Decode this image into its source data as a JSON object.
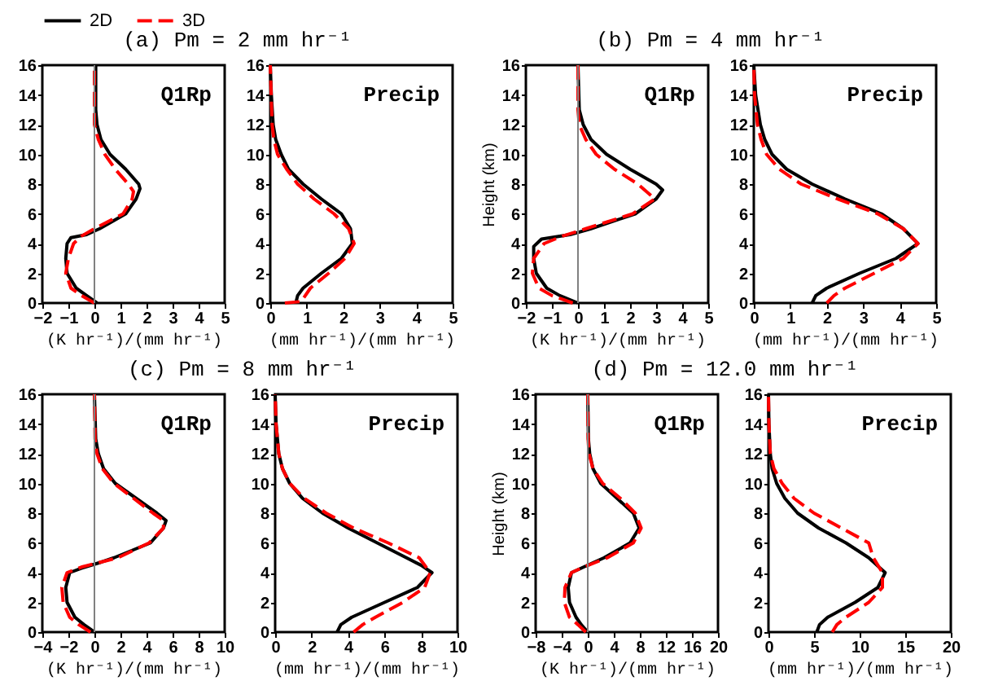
{
  "chart_data": [
    {
      "type": "line",
      "title": "(a) Pm = 2 mm hr⁻¹",
      "xlabel": "(K hr⁻¹)/(mm hr⁻¹)",
      "xlim": [
        -2,
        5
      ],
      "xticks": [
        -2,
        -1,
        0,
        1,
        2,
        3,
        4,
        5
      ],
      "ylim": [
        0,
        16
      ],
      "yticks": [
        0,
        2,
        4,
        6,
        8,
        10,
        12,
        14,
        16
      ],
      "annotations": [
        "Q1Rp"
      ],
      "legend": "top",
      "grid": false,
      "ref_lines": [
        {
          "axis": "x",
          "value": 0,
          "color": "#808080"
        }
      ],
      "series": [
        {
          "name": "2D",
          "color": "#000000",
          "line_style": "solid",
          "x": [
            0.1,
            -0.3,
            -0.7,
            -1.05,
            -1.1,
            -1.05,
            -0.9,
            -0.3,
            0.2,
            1.2,
            1.6,
            1.75,
            1.7,
            1.2,
            0.6,
            0.25,
            0.1,
            0.05,
            0.05
          ],
          "values": [
            0,
            0.5,
            1,
            2,
            3,
            4,
            4.4,
            4.6,
            5,
            6,
            7,
            7.7,
            8,
            9,
            10,
            11,
            12,
            13,
            16
          ]
        },
        {
          "name": "3D",
          "color": "#ff0000",
          "line_style": "dashed",
          "x": [
            0,
            -0.5,
            -0.9,
            -1.1,
            -1,
            -0.8,
            -0.5,
            0,
            1.1,
            1.45,
            1.5,
            1.3,
            0.8,
            0.4,
            0.15,
            0,
            0,
            0
          ],
          "values": [
            0,
            0.5,
            1,
            2,
            3,
            4,
            4.5,
            5,
            6,
            7,
            7.5,
            8,
            9,
            10,
            11,
            12,
            13,
            16
          ]
        }
      ]
    },
    {
      "type": "line",
      "xlabel": "(mm hr⁻¹)/(mm hr⁻¹)",
      "xlim": [
        0,
        5
      ],
      "xticks": [
        0,
        1,
        2,
        3,
        4,
        5
      ],
      "ylim": [
        0,
        16
      ],
      "yticks": [
        0,
        2,
        4,
        6,
        8,
        10,
        12,
        14,
        16
      ],
      "annotations": [
        "Precip"
      ],
      "grid": false,
      "series": [
        {
          "color": "#000000",
          "line_style": "solid",
          "x": [
            0.7,
            0.75,
            0.9,
            1.4,
            1.95,
            2.25,
            2.2,
            1.95,
            1.4,
            0.9,
            0.5,
            0.3,
            0.15,
            0.08,
            0.03,
            0
          ],
          "values": [
            0,
            0.5,
            1,
            2,
            3,
            4,
            5,
            6,
            7,
            8,
            9,
            10,
            11,
            12,
            14,
            16
          ]
        },
        {
          "color": "#ff0000",
          "line_style": "dashed",
          "x": [
            0.4,
            0.85,
            1.1,
            1.6,
            2.05,
            2.3,
            2.15,
            1.75,
            1.2,
            0.75,
            0.45,
            0.2,
            0.1,
            0.05,
            0
          ],
          "values": [
            0,
            0.1,
            1,
            2,
            3,
            4,
            5,
            6,
            7,
            8,
            9,
            10,
            11,
            12,
            16
          ]
        }
      ]
    },
    {
      "type": "line",
      "title": "(b) Pm = 4 mm hr⁻¹",
      "xlabel": "(K hr⁻¹)/(mm hr⁻¹)",
      "ylabel": "Height (km)",
      "xlim": [
        -2,
        5
      ],
      "xticks": [
        -2,
        -1,
        0,
        1,
        2,
        3,
        4,
        5
      ],
      "ylim": [
        0,
        16
      ],
      "yticks": [
        0,
        2,
        4,
        6,
        8,
        10,
        12,
        14,
        16
      ],
      "annotations": [
        "Q1Rp"
      ],
      "grid": false,
      "ref_lines": [
        {
          "axis": "x",
          "value": 0,
          "color": "#808080"
        }
      ],
      "series": [
        {
          "color": "#000000",
          "line_style": "solid",
          "x": [
            0,
            -0.7,
            -1.2,
            -1.6,
            -1.7,
            -1.7,
            -1.4,
            -0.3,
            0.5,
            2.2,
            3,
            3.25,
            3,
            2,
            1.1,
            0.5,
            0.2,
            0.05,
            0
          ],
          "values": [
            0,
            0.5,
            1,
            2,
            3,
            3.8,
            4.3,
            4.6,
            5,
            6,
            7,
            7.6,
            8,
            9,
            10,
            11,
            12,
            13,
            16
          ]
        },
        {
          "color": "#ff0000",
          "line_style": "dashed",
          "x": [
            -0.2,
            -1,
            -1.5,
            -1.75,
            -1.7,
            -1.3,
            -0.6,
            0.3,
            2.1,
            2.95,
            2.3,
            1.4,
            0.7,
            0.3,
            0.05,
            0,
            0
          ],
          "values": [
            0,
            0.5,
            1,
            2,
            3,
            4,
            4.5,
            5,
            6,
            7,
            8,
            9,
            10,
            11,
            12,
            13,
            16
          ]
        }
      ]
    },
    {
      "type": "line",
      "xlabel": "(mm hr⁻¹)/(mm hr⁻¹)",
      "xlim": [
        0,
        5
      ],
      "xticks": [
        0,
        1,
        2,
        3,
        4,
        5
      ],
      "ylim": [
        0,
        16
      ],
      "yticks": [
        0,
        2,
        4,
        6,
        8,
        10,
        12,
        14,
        16
      ],
      "annotations": [
        "Precip"
      ],
      "grid": false,
      "series": [
        {
          "color": "#000000",
          "line_style": "solid",
          "x": [
            1.6,
            1.7,
            2,
            2.9,
            3.9,
            4.5,
            4.3,
            4.1,
            3.5,
            2.5,
            1.6,
            0.9,
            0.5,
            0.3,
            0.18,
            0.05,
            0
          ],
          "values": [
            0,
            0.5,
            1,
            2,
            3,
            4,
            4.5,
            5,
            6,
            7,
            8,
            9,
            10,
            11,
            12,
            14,
            16
          ]
        },
        {
          "color": "#ff0000",
          "line_style": "dashed",
          "x": [
            2,
            2.2,
            2.5,
            3.3,
            4.1,
            4.5,
            4.1,
            3.4,
            2.3,
            1.3,
            0.7,
            0.35,
            0.2,
            0.1,
            0.02,
            0
          ],
          "values": [
            0,
            0.5,
            1,
            2,
            3,
            4,
            5,
            6,
            7,
            8,
            9,
            10,
            11,
            12,
            14,
            16
          ]
        }
      ]
    },
    {
      "type": "line",
      "title": "(c) Pm = 8 mm hr⁻¹",
      "xlabel": "(K hr⁻¹)/(mm hr⁻¹)",
      "xlim": [
        -4,
        10
      ],
      "xticks": [
        -4,
        -2,
        0,
        2,
        4,
        6,
        8,
        10
      ],
      "ylim": [
        0,
        16
      ],
      "yticks": [
        0,
        2,
        4,
        6,
        8,
        10,
        12,
        14,
        16
      ],
      "annotations": [
        "Q1Rp"
      ],
      "grid": false,
      "ref_lines": [
        {
          "axis": "x",
          "value": 0,
          "color": "#808080"
        }
      ],
      "series": [
        {
          "color": "#000000",
          "line_style": "solid",
          "x": [
            0,
            -0.8,
            -1.5,
            -2.1,
            -2.2,
            -1.9,
            -1,
            0.5,
            1.5,
            4.3,
            5.3,
            5.5,
            4.8,
            3.2,
            1.6,
            0.7,
            0.3,
            0.1,
            0
          ],
          "values": [
            0,
            0.5,
            1,
            2,
            3,
            4,
            4.3,
            4.7,
            5,
            6,
            7,
            7.5,
            8,
            9,
            10,
            11,
            12,
            13,
            16
          ]
        },
        {
          "color": "#ff0000",
          "line_style": "dashed",
          "x": [
            -0.3,
            -1.2,
            -1.9,
            -2.4,
            -2.5,
            -2.1,
            -0.9,
            1.8,
            4.2,
            5.3,
            5.3,
            4.5,
            3,
            1.5,
            0.6,
            0.2,
            0.05,
            0
          ],
          "values": [
            0,
            0.5,
            1,
            2,
            3,
            4,
            4.4,
            5,
            6,
            7,
            7.5,
            8,
            9,
            10,
            11,
            12,
            13,
            16
          ]
        }
      ]
    },
    {
      "type": "line",
      "xlabel": "(mm hr⁻¹)/(mm hr⁻¹)",
      "xlim": [
        0,
        10
      ],
      "xticks": [
        0,
        2,
        4,
        6,
        8,
        10
      ],
      "ylim": [
        0,
        16
      ],
      "yticks": [
        0,
        2,
        4,
        6,
        8,
        10,
        12,
        14,
        16
      ],
      "annotations": [
        "Precip"
      ],
      "grid": false,
      "series": [
        {
          "color": "#000000",
          "line_style": "solid",
          "x": [
            3.4,
            3.6,
            4.2,
            6,
            7.8,
            8.6,
            8,
            7.2,
            5.6,
            4,
            2.6,
            1.5,
            0.8,
            0.4,
            0.2,
            0.05,
            0
          ],
          "values": [
            0,
            0.5,
            1,
            2,
            3,
            4,
            4.5,
            5,
            6,
            7,
            8,
            9,
            10,
            11,
            12,
            14,
            16
          ]
        },
        {
          "color": "#ff0000",
          "line_style": "dashed",
          "x": [
            4.3,
            4.8,
            5.5,
            7,
            8.2,
            8.5,
            7.9,
            6.2,
            4.3,
            2.8,
            1.6,
            0.8,
            0.4,
            0.2,
            0.05,
            0
          ],
          "values": [
            0,
            0.5,
            1,
            2,
            3,
            4,
            5,
            6,
            7,
            8,
            9,
            10,
            11,
            12,
            14,
            16
          ]
        }
      ]
    },
    {
      "type": "line",
      "title": "(d) Pm = 12.0 mm hr⁻¹",
      "xlabel": "(K hr⁻¹)/(mm hr⁻¹)",
      "ylabel": "Height (km)",
      "xlim": [
        -8,
        20
      ],
      "xticks": [
        -8,
        -4,
        0,
        4,
        8,
        12,
        16,
        20
      ],
      "ylim": [
        0,
        16
      ],
      "yticks": [
        0,
        2,
        4,
        6,
        8,
        10,
        12,
        14,
        16
      ],
      "annotations": [
        "Q1Rp"
      ],
      "grid": false,
      "ref_lines": [
        {
          "axis": "x",
          "value": 0,
          "color": "#808080"
        }
      ],
      "series": [
        {
          "color": "#000000",
          "line_style": "solid",
          "x": [
            0,
            -1,
            -1.8,
            -2.8,
            -3,
            -2.5,
            -1,
            0.5,
            2.5,
            6.5,
            7.9,
            7,
            4.5,
            2,
            0.8,
            0.3,
            0.1,
            0
          ],
          "values": [
            0,
            0.5,
            1,
            2,
            3,
            4,
            4.3,
            4.6,
            5,
            6,
            7,
            8,
            9,
            10,
            11,
            12,
            13,
            16
          ]
        },
        {
          "color": "#ff0000",
          "line_style": "dashed",
          "x": [
            -0.3,
            -1.5,
            -2.8,
            -3.6,
            -3.5,
            -2.5,
            -0.5,
            3,
            7,
            8.2,
            7.3,
            5,
            2.3,
            0.8,
            0.2,
            0.05,
            0
          ],
          "values": [
            0,
            0.5,
            1,
            2,
            3,
            4,
            4.4,
            5,
            6,
            7,
            8,
            9,
            10,
            11,
            12,
            13,
            16
          ]
        }
      ]
    },
    {
      "type": "line",
      "xlabel": "(mm hr⁻¹)/(mm hr⁻¹)",
      "xlim": [
        0,
        20
      ],
      "xticks": [
        0,
        5,
        10,
        15,
        20
      ],
      "ylim": [
        0,
        16
      ],
      "yticks": [
        0,
        2,
        4,
        6,
        8,
        10,
        12,
        14,
        16
      ],
      "annotations": [
        "Precip"
      ],
      "grid": false,
      "series": [
        {
          "color": "#000000",
          "line_style": "solid",
          "x": [
            5.3,
            5.6,
            6.5,
            9.5,
            12,
            12.8,
            11,
            8.5,
            5.5,
            3.2,
            1.8,
            0.9,
            0.4,
            0.2,
            0.05,
            0
          ],
          "values": [
            0,
            0.5,
            1,
            2,
            3,
            4,
            5,
            6,
            7,
            8,
            9,
            10,
            11,
            12,
            14,
            16
          ]
        },
        {
          "color": "#ff0000",
          "line_style": "dashed",
          "x": [
            7,
            7.5,
            8.5,
            11,
            12.5,
            12.5,
            11.5,
            11,
            8,
            5,
            2.8,
            1.5,
            0.6,
            0.2,
            0.05,
            0
          ],
          "values": [
            0,
            0.5,
            1,
            2,
            3,
            4,
            5,
            6,
            7,
            8,
            9,
            10,
            11,
            12,
            14,
            16
          ]
        }
      ]
    }
  ]
}
